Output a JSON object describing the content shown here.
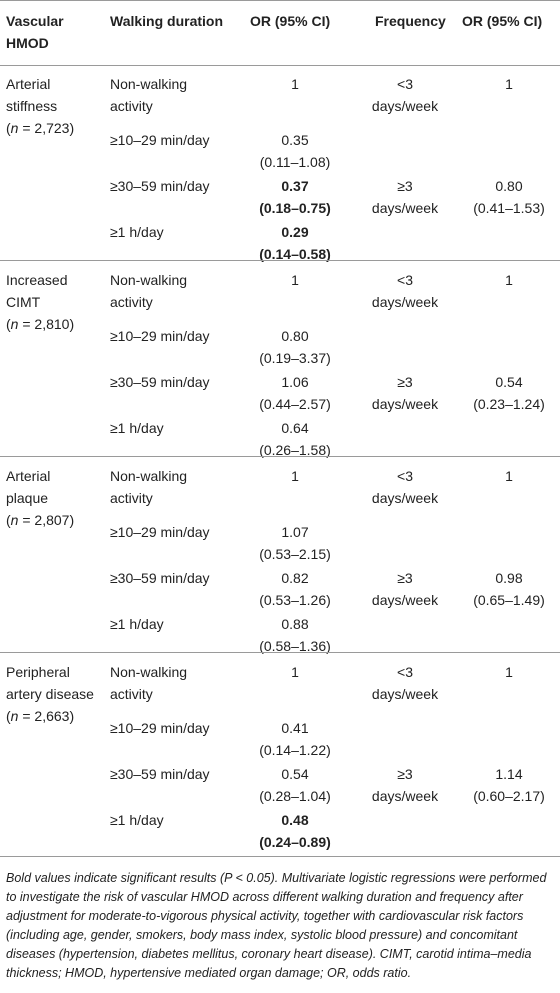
{
  "headers": {
    "hmod_line1": "Vascular",
    "hmod_line2": "HMOD",
    "duration": "Walking duration",
    "or1": "OR (95% CI)",
    "frequency": "Frequency",
    "or2": "OR (95% CI)"
  },
  "groups": [
    {
      "name_line1": "Arterial",
      "name_line2": "stiffness",
      "n_italic": "n",
      "n_rest": " = 2,723)",
      "rows": [
        {
          "duration_l1": "Non-walking",
          "duration_l2": "activity",
          "or_l1": "1",
          "or_l2": "",
          "freq_l1": "<3",
          "freq_l2": "days/week",
          "or2_l1": "1",
          "or2_l2": ""
        },
        {
          "duration_l1": "≥10–29 min/day",
          "duration_l2": "",
          "or_l1": "0.35",
          "or_l2": "(0.11–1.08)",
          "freq_l1": "",
          "freq_l2": "",
          "or2_l1": "",
          "or2_l2": ""
        },
        {
          "duration_l1": "≥30–59 min/day",
          "duration_l2": "",
          "or_l1": "0.37",
          "or_l2": "(0.18–0.75)",
          "bold": true,
          "freq_l1": "≥3",
          "freq_l2": "days/week",
          "or2_l1": "0.80",
          "or2_l2": "(0.41–1.53)"
        },
        {
          "duration_l1": "≥1 h/day",
          "duration_l2": "",
          "or_l1": "0.29",
          "or_l2": "(0.14–0.58)",
          "bold": true,
          "freq_l1": "",
          "freq_l2": "",
          "or2_l1": "",
          "or2_l2": ""
        }
      ]
    },
    {
      "name_line1": "Increased",
      "name_line2": "CIMT",
      "n_italic": "n",
      "n_rest": " = 2,810)",
      "rows": [
        {
          "duration_l1": "Non-walking",
          "duration_l2": "activity",
          "or_l1": "1",
          "or_l2": "",
          "freq_l1": "<3",
          "freq_l2": "days/week",
          "or2_l1": "1",
          "or2_l2": ""
        },
        {
          "duration_l1": "≥10–29 min/day",
          "duration_l2": "",
          "or_l1": "0.80",
          "or_l2": "(0.19–3.37)",
          "freq_l1": "",
          "freq_l2": "",
          "or2_l1": "",
          "or2_l2": ""
        },
        {
          "duration_l1": "≥30–59 min/day",
          "duration_l2": "",
          "or_l1": "1.06",
          "or_l2": "(0.44–2.57)",
          "freq_l1": "≥3",
          "freq_l2": "days/week",
          "or2_l1": "0.54",
          "or2_l2": "(0.23–1.24)"
        },
        {
          "duration_l1": "≥1 h/day",
          "duration_l2": "",
          "or_l1": "0.64",
          "or_l2": "(0.26–1.58)",
          "freq_l1": "",
          "freq_l2": "",
          "or2_l1": "",
          "or2_l2": ""
        }
      ]
    },
    {
      "name_line1": "Arterial",
      "name_line2": "plaque",
      "n_italic": "n",
      "n_rest": " = 2,807)",
      "rows": [
        {
          "duration_l1": "Non-walking",
          "duration_l2": "activity",
          "or_l1": "1",
          "or_l2": "",
          "freq_l1": "<3",
          "freq_l2": "days/week",
          "or2_l1": "1",
          "or2_l2": ""
        },
        {
          "duration_l1": "≥10–29 min/day",
          "duration_l2": "",
          "or_l1": "1.07",
          "or_l2": "(0.53–2.15)",
          "freq_l1": "",
          "freq_l2": "",
          "or2_l1": "",
          "or2_l2": ""
        },
        {
          "duration_l1": "≥30–59 min/day",
          "duration_l2": "",
          "or_l1": "0.82",
          "or_l2": "(0.53–1.26)",
          "freq_l1": "≥3",
          "freq_l2": "days/week",
          "or2_l1": "0.98",
          "or2_l2": "(0.65–1.49)"
        },
        {
          "duration_l1": "≥1 h/day",
          "duration_l2": "",
          "or_l1": "0.88",
          "or_l2": "(0.58–1.36)",
          "freq_l1": "",
          "freq_l2": "",
          "or2_l1": "",
          "or2_l2": ""
        }
      ]
    },
    {
      "name_line1": "Peripheral",
      "name_line2": "artery disease",
      "n_italic": "n",
      "n_rest": " = 2,663)",
      "rows": [
        {
          "duration_l1": "Non-walking",
          "duration_l2": "activity",
          "or_l1": "1",
          "or_l2": "",
          "freq_l1": "<3",
          "freq_l2": "days/week",
          "or2_l1": "1",
          "or2_l2": ""
        },
        {
          "duration_l1": "≥10–29 min/day",
          "duration_l2": "",
          "or_l1": "0.41",
          "or_l2": "(0.14–1.22)",
          "freq_l1": "",
          "freq_l2": "",
          "or2_l1": "",
          "or2_l2": ""
        },
        {
          "duration_l1": "≥30–59 min/day",
          "duration_l2": "",
          "or_l1": "0.54",
          "or_l2": "(0.28–1.04)",
          "freq_l1": "≥3",
          "freq_l2": "days/week",
          "or2_l1": "1.14",
          "or2_l2": "(0.60–2.17)"
        },
        {
          "duration_l1": "≥1 h/day",
          "duration_l2": "",
          "or_l1": "0.48",
          "or_l2": "(0.24–0.89)",
          "bold": true,
          "freq_l1": "",
          "freq_l2": "",
          "or2_l1": "",
          "or2_l2": ""
        }
      ]
    }
  ],
  "footnote": "Bold values indicate significant results (P < 0.05). Multivariate logistic regressions were performed to investigate the risk of vascular HMOD across different walking duration and frequency after adjustment for moderate-to-vigorous physical activity, together with cardiovascular risk factors (including age, gender, smokers, body mass index, systolic blood pressure) and concomitant diseases (hypertension, diabetes mellitus, coronary heart disease). CIMT, carotid intima–media thickness; HMOD, hypertensive mediated organ damage; OR, odds ratio."
}
